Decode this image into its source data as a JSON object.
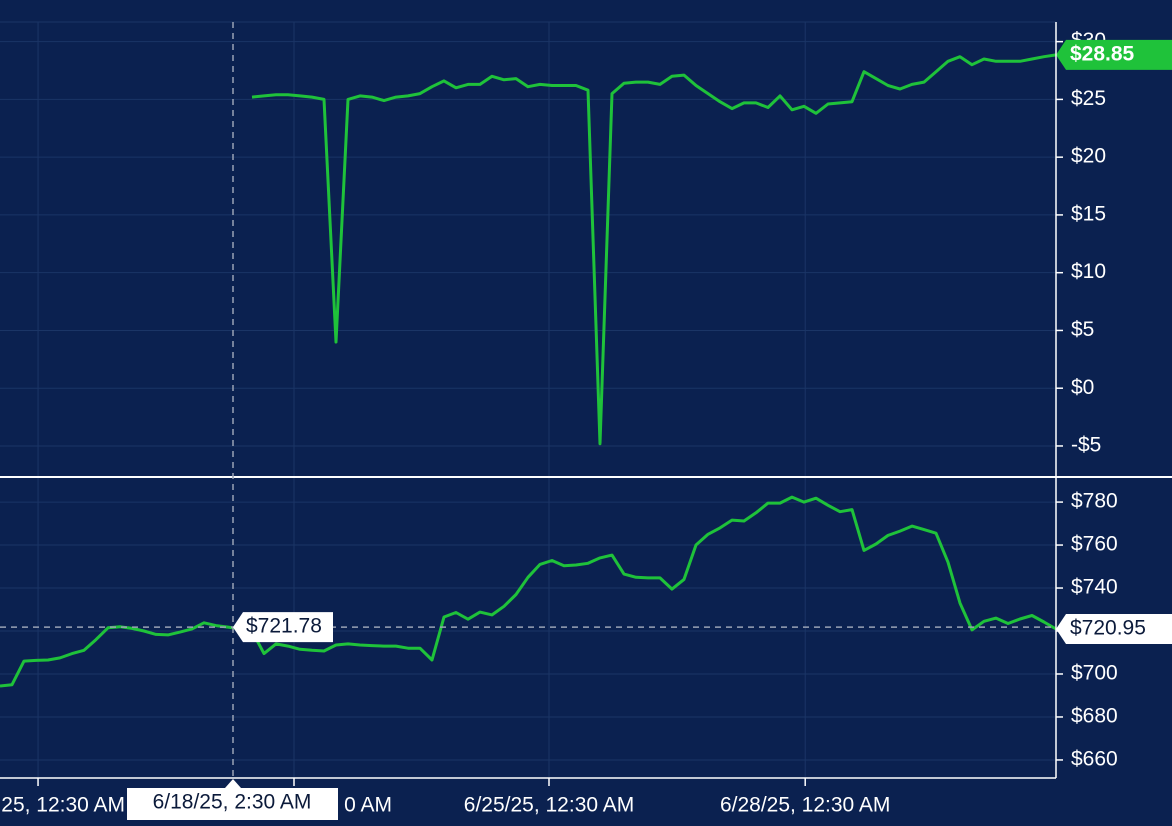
{
  "chart_data": [
    {
      "type": "line",
      "color": "#1fc23a",
      "xlim": [
        0,
        88
      ],
      "ylim": [
        -7.6,
        31.7
      ],
      "yticks": [
        {
          "value": -5,
          "label": "-$5"
        },
        {
          "value": 0,
          "label": "$0"
        },
        {
          "value": 5,
          "label": "$5"
        },
        {
          "value": 10,
          "label": "$10"
        },
        {
          "value": 15,
          "label": "$15"
        },
        {
          "value": 20,
          "label": "$20"
        },
        {
          "value": 25,
          "label": "$25"
        },
        {
          "value": 30,
          "label": "$30"
        }
      ],
      "values": [
        null,
        null,
        null,
        null,
        null,
        null,
        null,
        null,
        null,
        null,
        null,
        null,
        null,
        null,
        null,
        null,
        null,
        null,
        null,
        null,
        null,
        25.2,
        25.3,
        25.4,
        25.4,
        25.3,
        25.2,
        25.0,
        4.0,
        25.0,
        25.3,
        25.2,
        24.9,
        25.2,
        25.3,
        25.5,
        26.1,
        26.6,
        26.0,
        26.3,
        26.3,
        27.0,
        26.7,
        26.8,
        26.1,
        26.3,
        26.2,
        26.2,
        26.2,
        25.8,
        -4.8,
        25.5,
        26.4,
        26.5,
        26.5,
        26.3,
        27.0,
        27.1,
        26.2,
        25.5,
        24.8,
        24.2,
        24.7,
        24.7,
        24.3,
        25.3,
        24.1,
        24.4,
        23.8,
        24.6,
        24.7,
        24.8,
        27.4,
        26.8,
        26.2,
        25.9,
        26.3,
        26.5,
        27.4,
        28.3,
        28.7,
        28.0,
        28.5,
        28.3,
        28.3,
        28.3,
        28.5,
        28.7,
        28.85
      ],
      "last_label": "$28.85"
    },
    {
      "type": "line",
      "color": "#1fc23a",
      "xlim": [
        0,
        88
      ],
      "ylim": [
        651.6,
        791.2
      ],
      "yticks": [
        {
          "value": 660,
          "label": "$660"
        },
        {
          "value": 680,
          "label": "$680"
        },
        {
          "value": 700,
          "label": "$700"
        },
        {
          "value": 720,
          "label": "$720"
        },
        {
          "value": 740,
          "label": "$740"
        },
        {
          "value": 760,
          "label": "$760"
        },
        {
          "value": 780,
          "label": "$780"
        }
      ],
      "values": [
        694.4,
        695.0,
        706.0,
        706.3,
        706.5,
        707.5,
        709.5,
        711.0,
        716.0,
        721.5,
        722.0,
        721.2,
        720.0,
        718.4,
        718.2,
        719.5,
        721.0,
        723.8,
        722.5,
        721.8,
        721.0,
        720.0,
        709.5,
        714.0,
        713.0,
        711.5,
        711.0,
        710.7,
        713.5,
        714.0,
        713.5,
        713.2,
        713.0,
        713.0,
        712.0,
        712.0,
        706.5,
        726.5,
        728.6,
        725.5,
        728.8,
        727.5,
        731.5,
        737.0,
        745.0,
        751.0,
        752.8,
        750.4,
        750.7,
        751.5,
        754.0,
        755.3,
        746.5,
        745.0,
        744.7,
        744.7,
        739.5,
        744.0,
        760.0,
        765.0,
        768.0,
        771.6,
        771.2,
        775.0,
        779.5,
        779.5,
        782.3,
        780.0,
        781.8,
        778.5,
        775.5,
        776.5,
        757.5,
        760.5,
        764.5,
        766.5,
        768.8,
        767.2,
        765.5,
        752.0,
        733.0,
        720.5,
        724.5,
        726.0,
        723.5,
        725.6,
        727.2,
        724.2,
        720.95
      ],
      "last_label": "$720.95",
      "xticks": [
        {
          "value": 3.17,
          "label": "25, 12:30 AM"
        },
        {
          "value": 24.5,
          "label": "0 AM"
        },
        {
          "value": 45.75,
          "label": "6/25/25, 12:30 AM"
        },
        {
          "value": 67.1,
          "label": "6/28/25, 12:30 AM"
        }
      ],
      "crosshair": {
        "value": 721.78,
        "label": "$721.78",
        "x_label": "6/18/25, 2:30 AM"
      }
    }
  ]
}
